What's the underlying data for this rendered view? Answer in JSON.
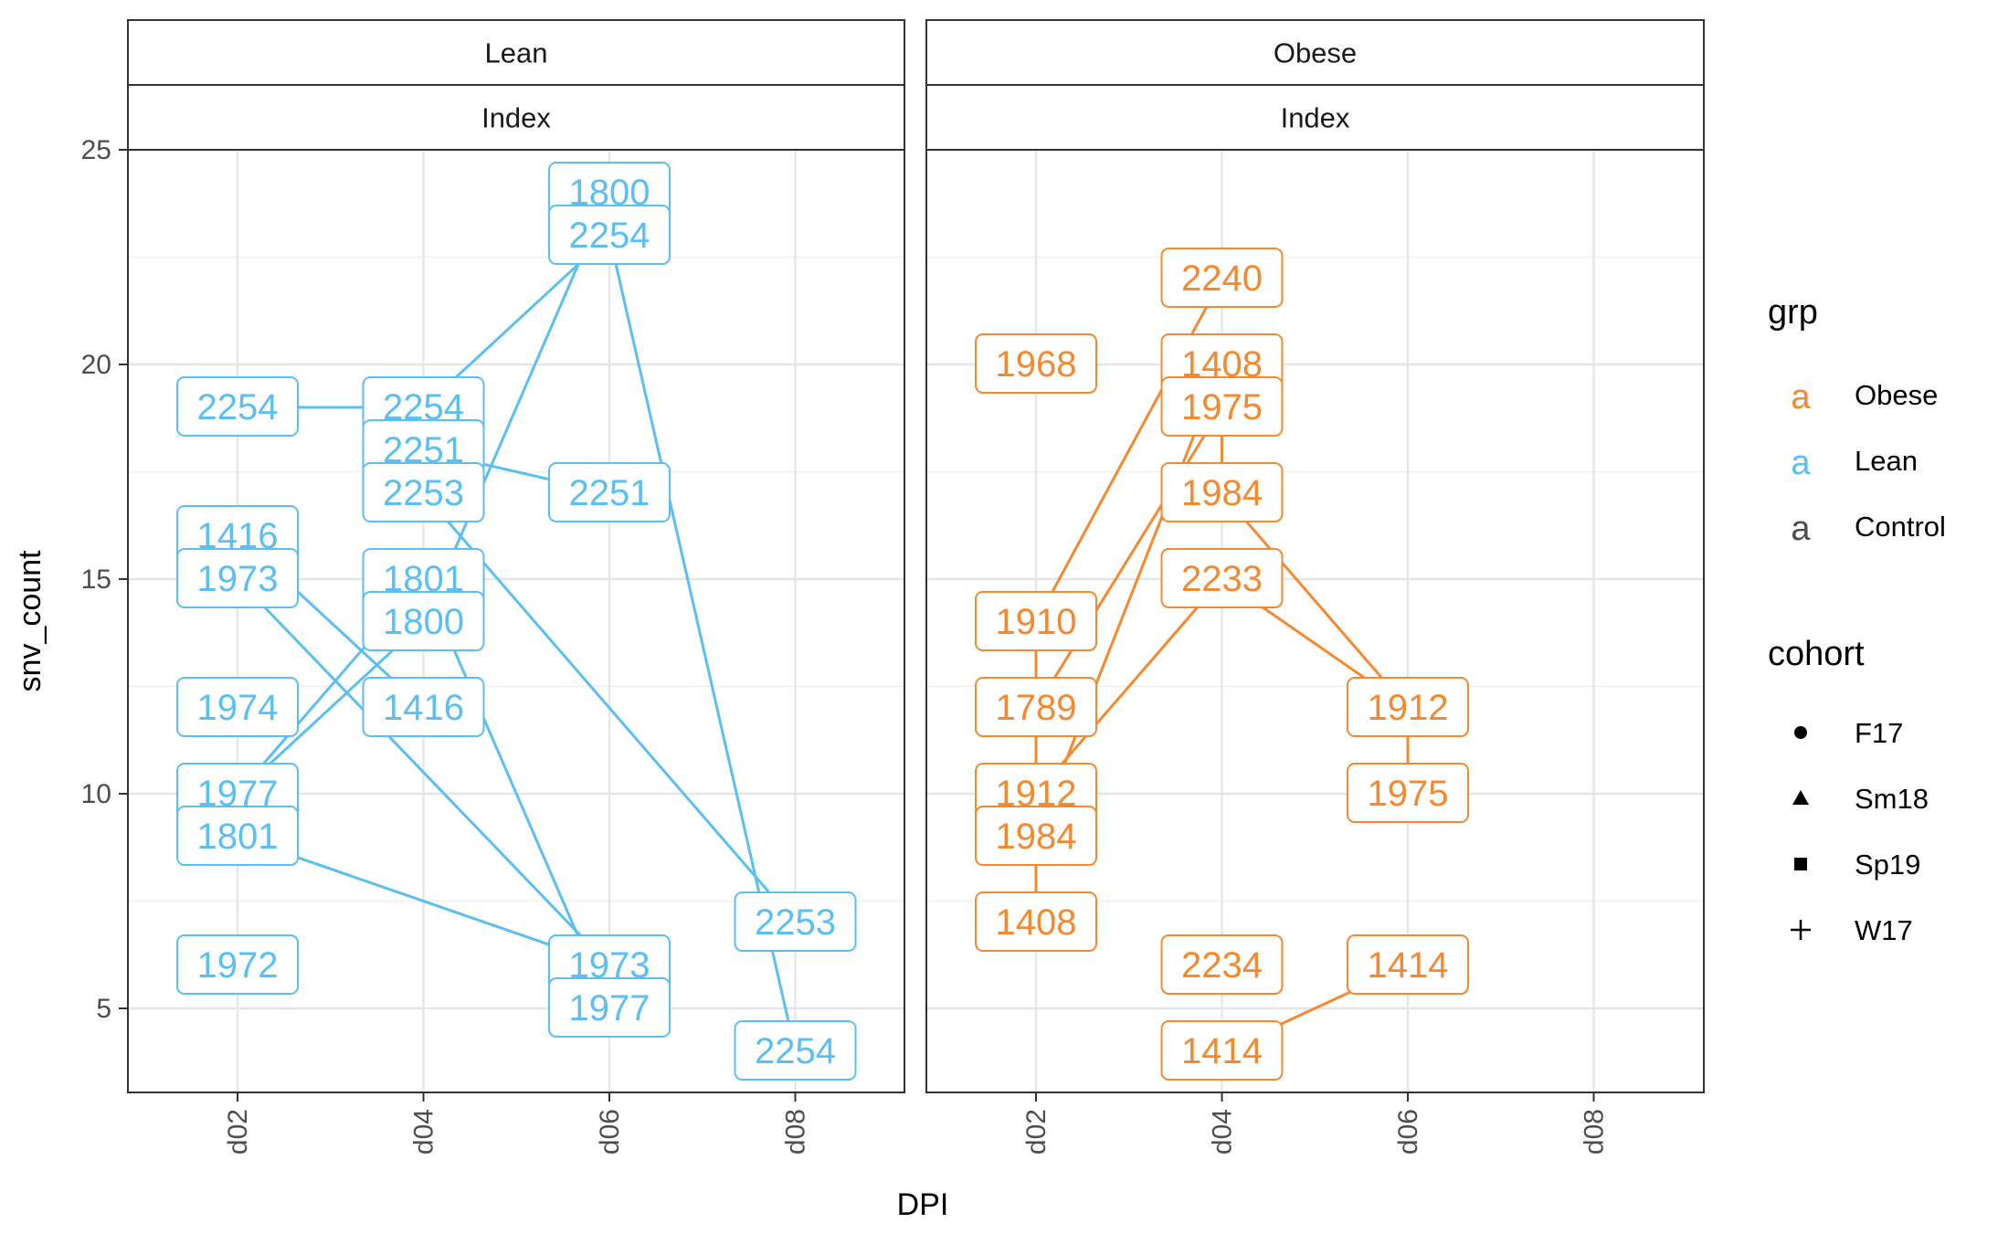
{
  "chart_data": {
    "type": "line",
    "xlabel": "DPI",
    "ylabel": "snv_count",
    "x_categories": [
      "d02",
      "d04",
      "d06",
      "d08"
    ],
    "ylim": [
      3,
      26
    ],
    "y_ticks": [
      5,
      10,
      15,
      20,
      25
    ],
    "grid": true,
    "facets": [
      {
        "strip_top": "Lean",
        "strip_bottom": "Index",
        "color": "#5bbff2",
        "labels": [
          {
            "x": "d02",
            "y": 19,
            "text": "2254"
          },
          {
            "x": "d02",
            "y": 16,
            "text": "1416"
          },
          {
            "x": "d02",
            "y": 15,
            "text": "1973"
          },
          {
            "x": "d02",
            "y": 12,
            "text": "1974"
          },
          {
            "x": "d02",
            "y": 10,
            "text": "1977"
          },
          {
            "x": "d02",
            "y": 9,
            "text": "1801"
          },
          {
            "x": "d02",
            "y": 6,
            "text": "1972"
          },
          {
            "x": "d04",
            "y": 19,
            "text": "2254"
          },
          {
            "x": "d04",
            "y": 18,
            "text": "2251"
          },
          {
            "x": "d04",
            "y": 17,
            "text": "2253"
          },
          {
            "x": "d04",
            "y": 15,
            "text": "1801"
          },
          {
            "x": "d04",
            "y": 14,
            "text": "1800"
          },
          {
            "x": "d04",
            "y": 12,
            "text": "1416"
          },
          {
            "x": "d06",
            "y": 24,
            "text": "1800"
          },
          {
            "x": "d06",
            "y": 23,
            "text": "2254"
          },
          {
            "x": "d06",
            "y": 17,
            "text": "2251"
          },
          {
            "x": "d06",
            "y": 6,
            "text": "1973"
          },
          {
            "x": "d06",
            "y": 5,
            "text": "1977"
          },
          {
            "x": "d08",
            "y": 7,
            "text": "2253"
          },
          {
            "x": "d08",
            "y": 4,
            "text": "2254"
          }
        ],
        "lines": [
          {
            "id": "2254",
            "points": [
              [
                "d02",
                19
              ],
              [
                "d04",
                19
              ],
              [
                "d06",
                23
              ],
              [
                "d08",
                4
              ]
            ]
          },
          {
            "id": "1800",
            "points": [
              [
                "d02",
                10
              ],
              [
                "d04",
                14
              ],
              [
                "d06",
                24
              ]
            ]
          },
          {
            "id": "2251",
            "points": [
              [
                "d04",
                18
              ],
              [
                "d06",
                17
              ]
            ]
          },
          {
            "id": "2253",
            "points": [
              [
                "d04",
                17
              ],
              [
                "d08",
                7
              ]
            ]
          },
          {
            "id": "1801",
            "points": [
              [
                "d02",
                9
              ],
              [
                "d06",
                6
              ]
            ]
          },
          {
            "id": "1977",
            "points": [
              [
                "d02",
                10
              ],
              [
                "d04",
                15
              ],
              [
                "d06",
                5
              ]
            ]
          },
          {
            "id": "1416",
            "points": [
              [
                "d02",
                16
              ],
              [
                "d04",
                12
              ]
            ]
          },
          {
            "id": "1973",
            "points": [
              [
                "d02",
                15
              ],
              [
                "d06",
                6
              ]
            ]
          }
        ]
      },
      {
        "strip_top": "Obese",
        "strip_bottom": "Index",
        "color": "#f5892f",
        "labels": [
          {
            "x": "d02",
            "y": 20,
            "text": "1968"
          },
          {
            "x": "d02",
            "y": 14,
            "text": "1910"
          },
          {
            "x": "d02",
            "y": 12,
            "text": "1789"
          },
          {
            "x": "d02",
            "y": 10,
            "text": "1912"
          },
          {
            "x": "d02",
            "y": 9,
            "text": "1984"
          },
          {
            "x": "d02",
            "y": 7,
            "text": "1408"
          },
          {
            "x": "d04",
            "y": 22,
            "text": "2240"
          },
          {
            "x": "d04",
            "y": 20,
            "text": "1408"
          },
          {
            "x": "d04",
            "y": 19,
            "text": "1975"
          },
          {
            "x": "d04",
            "y": 17,
            "text": "1984"
          },
          {
            "x": "d04",
            "y": 15,
            "text": "2233"
          },
          {
            "x": "d04",
            "y": 6,
            "text": "2234"
          },
          {
            "x": "d04",
            "y": 4,
            "text": "1414"
          },
          {
            "x": "d06",
            "y": 12,
            "text": "1912"
          },
          {
            "x": "d06",
            "y": 10,
            "text": "1975"
          },
          {
            "x": "d06",
            "y": 6,
            "text": "1414"
          }
        ],
        "lines": [
          {
            "id": "1408",
            "points": [
              [
                "d02",
                7
              ],
              [
                "d02",
                14
              ],
              [
                "d04",
                22
              ]
            ]
          },
          {
            "id": "1975",
            "points": [
              [
                "d02",
                12
              ],
              [
                "d04",
                19
              ],
              [
                "d04",
                17
              ],
              [
                "d06",
                12
              ],
              [
                "d06",
                10
              ]
            ]
          },
          {
            "id": "1984",
            "points": [
              [
                "d02",
                9
              ],
              [
                "d04",
                20
              ]
            ]
          },
          {
            "id": "1912",
            "points": [
              [
                "d02",
                10
              ],
              [
                "d04",
                15
              ],
              [
                "d06",
                12
              ]
            ]
          },
          {
            "id": "1414",
            "points": [
              [
                "d04",
                4
              ],
              [
                "d06",
                6
              ]
            ]
          }
        ]
      }
    ],
    "legend": {
      "placement": "right",
      "grp": {
        "title": "grp",
        "glyph": "a",
        "items": [
          {
            "name": "Obese",
            "color": "#f5892f"
          },
          {
            "name": "Lean",
            "color": "#5bbff2"
          },
          {
            "name": "Control",
            "color": "#4d4d4d"
          }
        ]
      },
      "cohort": {
        "title": "cohort",
        "items": [
          {
            "name": "F17",
            "shape": "circle"
          },
          {
            "name": "Sm18",
            "shape": "triangle"
          },
          {
            "name": "Sp19",
            "shape": "square"
          },
          {
            "name": "W17",
            "shape": "plus"
          }
        ]
      }
    }
  }
}
